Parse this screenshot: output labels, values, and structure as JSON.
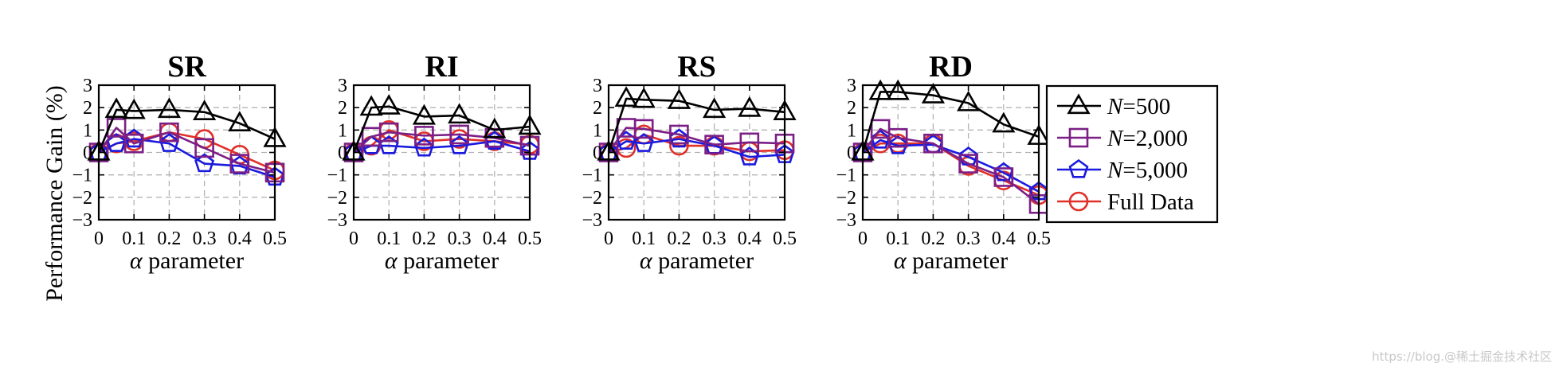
{
  "ylabel": "Performance Gain (%)",
  "watermark": "https://blog.@稀土掘金技术社区",
  "legend": [
    {
      "label": "N=500",
      "italic": "N",
      "rest": "=500",
      "color": "#000000",
      "marker": "triangle"
    },
    {
      "label": "N=2,000",
      "italic": "N",
      "rest": "=2,000",
      "color": "#7b1f86",
      "marker": "square"
    },
    {
      "label": "N=5,000",
      "italic": "N",
      "rest": "=5,000",
      "color": "#1a1adf",
      "marker": "pentagon"
    },
    {
      "label": "Full Data",
      "italic": "",
      "rest": "Full Data",
      "color": "#e0302a",
      "marker": "circle"
    }
  ],
  "chart_data": [
    {
      "type": "line",
      "title": "SR",
      "xlabel": "α parameter",
      "x": [
        0,
        0.05,
        0.1,
        0.2,
        0.3,
        0.4,
        0.5
      ],
      "xticks": [
        "0",
        "0.1",
        "0.2",
        "0.3",
        "0.4",
        "0.5"
      ],
      "yticks": [
        "3",
        "2",
        "1",
        "0",
        "−1",
        "−2",
        "−3"
      ],
      "xlim": [
        0,
        0.5
      ],
      "ylim": [
        -3,
        3
      ],
      "grid": true,
      "series": [
        {
          "name": "N=500",
          "values": [
            0,
            1.9,
            1.85,
            1.9,
            1.8,
            1.3,
            0.6
          ]
        },
        {
          "name": "N=2,000",
          "values": [
            0,
            1.1,
            0.4,
            0.9,
            0.2,
            -0.5,
            -0.9
          ]
        },
        {
          "name": "N=5,000",
          "values": [
            0,
            0.4,
            0.6,
            0.4,
            -0.5,
            -0.6,
            -1.1
          ]
        },
        {
          "name": "Full Data",
          "values": [
            0,
            0.4,
            0.5,
            0.9,
            0.6,
            -0.1,
            -0.8
          ]
        }
      ]
    },
    {
      "type": "line",
      "title": "RI",
      "xlabel": "α parameter",
      "x": [
        0,
        0.05,
        0.1,
        0.2,
        0.3,
        0.4,
        0.5
      ],
      "xticks": [
        "0",
        "0.1",
        "0.2",
        "0.3",
        "0.4",
        "0.5"
      ],
      "yticks": [
        "3",
        "2",
        "1",
        "0",
        "−1",
        "−2",
        "−3"
      ],
      "xlim": [
        0,
        0.5
      ],
      "ylim": [
        -3,
        3
      ],
      "grid": true,
      "series": [
        {
          "name": "N=500",
          "values": [
            0,
            2.0,
            2.05,
            1.6,
            1.65,
            1.0,
            1.15
          ]
        },
        {
          "name": "N=2,000",
          "values": [
            0,
            0.7,
            0.9,
            0.75,
            0.8,
            0.65,
            0.3
          ]
        },
        {
          "name": "N=5,000",
          "values": [
            0,
            0.3,
            0.3,
            0.2,
            0.3,
            0.5,
            0.05
          ]
        },
        {
          "name": "Full Data",
          "values": [
            0,
            0.3,
            1.0,
            0.5,
            0.6,
            0.5,
            0.35
          ]
        }
      ]
    },
    {
      "type": "line",
      "title": "RS",
      "xlabel": "α parameter",
      "x": [
        0,
        0.05,
        0.1,
        0.2,
        0.3,
        0.4,
        0.5
      ],
      "xticks": [
        "0",
        "0.1",
        "0.2",
        "0.3",
        "0.4",
        "0.5"
      ],
      "yticks": [
        "3",
        "2",
        "1",
        "0",
        "−1",
        "−2",
        "−3"
      ],
      "xlim": [
        0,
        0.5
      ],
      "ylim": [
        -3,
        3
      ],
      "grid": true,
      "series": [
        {
          "name": "N=500",
          "values": [
            0,
            2.4,
            2.35,
            2.3,
            1.9,
            1.95,
            1.8
          ]
        },
        {
          "name": "N=2,000",
          "values": [
            0,
            1.1,
            1.05,
            0.8,
            0.35,
            0.45,
            0.4
          ]
        },
        {
          "name": "N=5,000",
          "values": [
            0,
            0.5,
            0.4,
            0.6,
            0.3,
            -0.2,
            -0.1
          ]
        },
        {
          "name": "Full Data",
          "values": [
            0,
            0.2,
            0.8,
            0.3,
            0.3,
            0.05,
            0.1
          ]
        }
      ]
    },
    {
      "type": "line",
      "title": "RD",
      "xlabel": "α parameter",
      "x": [
        0,
        0.05,
        0.1,
        0.2,
        0.3,
        0.4,
        0.5
      ],
      "xticks": [
        "0",
        "0.1",
        "0.2",
        "0.3",
        "0.4",
        "0.5"
      ],
      "yticks": [
        "3",
        "2",
        "1",
        "0",
        "−1",
        "−2",
        "−3"
      ],
      "xlim": [
        0,
        0.5
      ],
      "ylim": [
        -3,
        3
      ],
      "grid": true,
      "series": [
        {
          "name": "N=500",
          "values": [
            0,
            2.7,
            2.7,
            2.55,
            2.2,
            1.25,
            0.7
          ]
        },
        {
          "name": "N=2,000",
          "values": [
            0,
            1.05,
            0.65,
            0.4,
            -0.5,
            -1.1,
            -2.3
          ]
        },
        {
          "name": "N=5,000",
          "values": [
            0,
            0.55,
            0.3,
            0.35,
            -0.2,
            -0.9,
            -1.75
          ]
        },
        {
          "name": "Full Data",
          "values": [
            0,
            0.4,
            0.4,
            0.4,
            -0.6,
            -1.25,
            -1.9
          ]
        }
      ]
    }
  ]
}
